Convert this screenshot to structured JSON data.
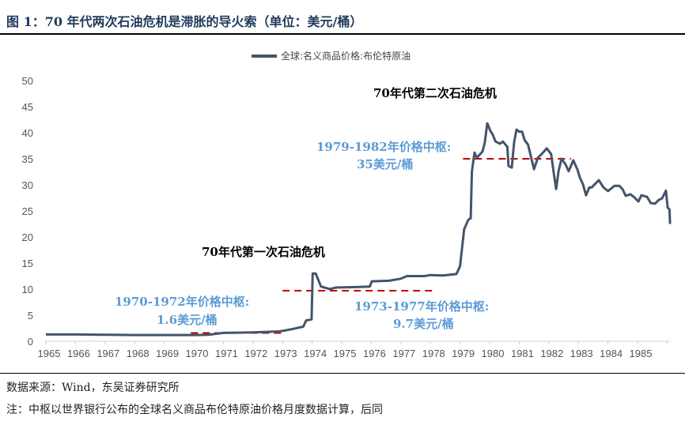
{
  "title": "图 1：70 年代两次石油危机是滞胀的导火索（单位：美元/桶）",
  "footer": {
    "source": "数据来源：Wind，东吴证券研究所",
    "note": "注：中枢以世界银行公布的全球名义商品布伦特原油价格月度数据计算，后同"
  },
  "chart_data": {
    "type": "line",
    "title": "",
    "xlabel": "",
    "ylabel": "",
    "ylim": [
      0,
      50
    ],
    "xlim": [
      1965,
      1986
    ],
    "yticks": [
      0,
      5,
      10,
      15,
      20,
      25,
      30,
      35,
      40,
      45,
      50
    ],
    "xticks": [
      "1965",
      "1966",
      "1967",
      "1968",
      "1969",
      "1970",
      "1971",
      "1972",
      "1973",
      "1974",
      "1975",
      "1976",
      "1977",
      "1978",
      "1979",
      "1980",
      "1981",
      "1982",
      "1983",
      "1984",
      "1985"
    ],
    "grid": false,
    "legend": "top-center",
    "colors": {
      "series": "#44546a",
      "reference": "#c00000",
      "annotation_blue": "#5b9bd5"
    },
    "series": [
      {
        "name": "全球:名义商品价格:布伦特原油",
        "points": [
          [
            1965,
            1.3
          ],
          [
            1966,
            1.3
          ],
          [
            1967,
            1.25
          ],
          [
            1968,
            1.2
          ],
          [
            1969,
            1.2
          ],
          [
            1970,
            1.2
          ],
          [
            1970.5,
            1.25
          ],
          [
            1971,
            1.6
          ],
          [
            1971.5,
            1.65
          ],
          [
            1972,
            1.7
          ],
          [
            1972.9,
            1.9
          ],
          [
            1973.3,
            2.3
          ],
          [
            1973.7,
            2.8
          ],
          [
            1973.8,
            4.0
          ],
          [
            1973.98,
            4.2
          ],
          [
            1974.02,
            13.0
          ],
          [
            1974.12,
            13.0
          ],
          [
            1974.3,
            10.5
          ],
          [
            1974.6,
            10.0
          ],
          [
            1974.8,
            10.3
          ],
          [
            1975.5,
            10.4
          ],
          [
            1975.95,
            10.5
          ],
          [
            1976.02,
            11.5
          ],
          [
            1976.6,
            11.6
          ],
          [
            1977,
            12.0
          ],
          [
            1977.2,
            12.5
          ],
          [
            1977.8,
            12.5
          ],
          [
            1978,
            12.7
          ],
          [
            1978.42,
            12.6
          ],
          [
            1978.88,
            12.9
          ],
          [
            1979.0,
            14.4
          ],
          [
            1979.14,
            21.5
          ],
          [
            1979.28,
            23.3
          ],
          [
            1979.36,
            23.6
          ],
          [
            1979.4,
            32.6
          ],
          [
            1979.49,
            36.2
          ],
          [
            1979.57,
            35.2
          ],
          [
            1979.76,
            36.4
          ],
          [
            1979.84,
            38.2
          ],
          [
            1979.92,
            41.8
          ],
          [
            1980.03,
            40.3
          ],
          [
            1980.1,
            39.7
          ],
          [
            1980.2,
            38.3
          ],
          [
            1980.35,
            37.9
          ],
          [
            1980.45,
            38.3
          ],
          [
            1980.6,
            37.3
          ],
          [
            1980.64,
            33.6
          ],
          [
            1980.75,
            33.3
          ],
          [
            1980.83,
            38.2
          ],
          [
            1980.91,
            40.6
          ],
          [
            1981.0,
            40.2
          ],
          [
            1981.1,
            40.2
          ],
          [
            1981.18,
            38.6
          ],
          [
            1981.3,
            37.7
          ],
          [
            1981.5,
            33.0
          ],
          [
            1981.63,
            35.2
          ],
          [
            1981.76,
            35.9
          ],
          [
            1981.93,
            37.0
          ],
          [
            1982.08,
            35.9
          ],
          [
            1982.17,
            32.1
          ],
          [
            1982.25,
            29.2
          ],
          [
            1982.33,
            32.6
          ],
          [
            1982.43,
            35.0
          ],
          [
            1982.57,
            33.9
          ],
          [
            1982.67,
            32.6
          ],
          [
            1982.83,
            34.7
          ],
          [
            1982.97,
            32.9
          ],
          [
            1983.05,
            31.4
          ],
          [
            1983.15,
            30.2
          ],
          [
            1983.26,
            28.0
          ],
          [
            1983.37,
            29.5
          ],
          [
            1983.45,
            29.5
          ],
          [
            1983.69,
            30.9
          ],
          [
            1983.85,
            29.5
          ],
          [
            1984.0,
            28.8
          ],
          [
            1984.22,
            29.8
          ],
          [
            1984.39,
            29.8
          ],
          [
            1984.5,
            29.1
          ],
          [
            1984.6,
            27.9
          ],
          [
            1984.76,
            28.2
          ],
          [
            1984.89,
            27.6
          ],
          [
            1985.03,
            26.8
          ],
          [
            1985.13,
            28.0
          ],
          [
            1985.32,
            27.7
          ],
          [
            1985.45,
            26.5
          ],
          [
            1985.59,
            26.4
          ],
          [
            1985.72,
            27.1
          ],
          [
            1985.83,
            27.4
          ],
          [
            1985.96,
            28.9
          ],
          [
            1986.02,
            25.6
          ],
          [
            1986.08,
            25.3
          ],
          [
            1986.1,
            22.5
          ]
        ]
      }
    ],
    "reference_lines": [
      {
        "label": "1970-1972年价格中枢:",
        "value_label": "1.6美元/桶",
        "value": 1.6,
        "x_range": [
          1969.9,
          1973.0
        ]
      },
      {
        "label": "1973-1977年价格中枢:",
        "value_label": "9.7美元/桶",
        "value": 9.7,
        "x_range": [
          1973.0,
          1978.1
        ]
      },
      {
        "label": "1979-1982年价格中枢:",
        "value_label": "35美元/桶",
        "value": 35,
        "x_range": [
          1979.1,
          1982.75
        ]
      }
    ],
    "annotations": [
      "70年代第一次石油危机",
      "70年代第二次石油危机"
    ]
  }
}
